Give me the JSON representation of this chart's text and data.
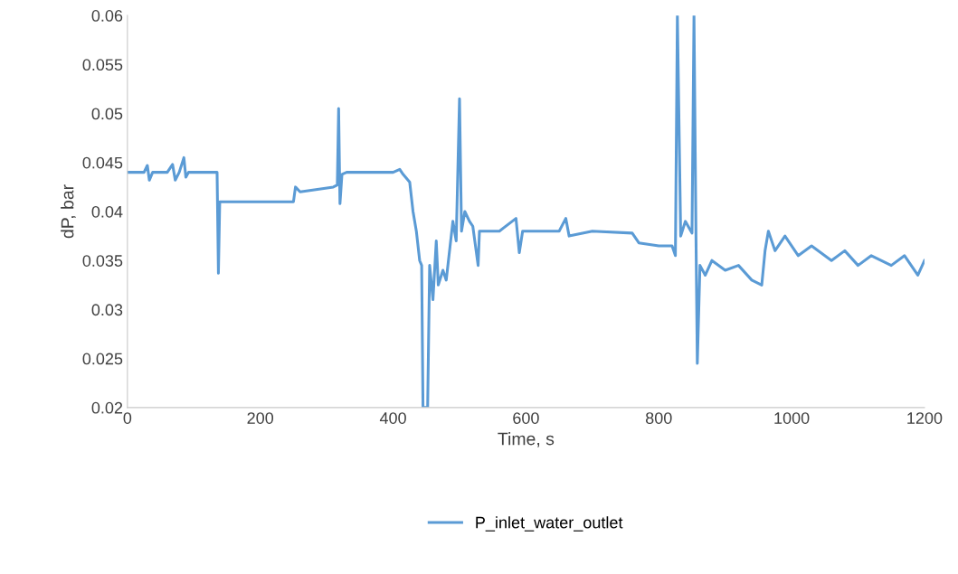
{
  "chart_data": {
    "type": "line",
    "xlabel": "Time, s",
    "ylabel": "dP, bar",
    "xlim": [
      0,
      1200
    ],
    "xticks": [
      0,
      200,
      400,
      600,
      800,
      1000,
      1200
    ],
    "ylim": [
      0.02,
      0.06
    ],
    "yticks": [
      0.02,
      0.025,
      0.03,
      0.035,
      0.04,
      0.045,
      0.05,
      0.055,
      0.06
    ],
    "legend": "bottom",
    "grid": false,
    "marker": "none",
    "line_style": "solid",
    "series": [
      {
        "name": "P_inlet_water_outlet",
        "color": "#5b9bd5",
        "x": [
          0,
          25,
          30,
          33,
          38,
          60,
          68,
          72,
          78,
          85,
          88,
          92,
          135,
          137,
          139,
          145,
          200,
          250,
          253,
          260,
          310,
          316,
          318,
          320,
          323,
          330,
          400,
          410,
          415,
          425,
          430,
          435,
          440,
          443,
          445,
          452,
          455,
          460,
          465,
          468,
          475,
          480,
          490,
          495,
          500,
          503,
          508,
          515,
          520,
          528,
          530,
          560,
          585,
          590,
          595,
          650,
          660,
          665,
          700,
          760,
          770,
          800,
          820,
          825,
          828,
          833,
          840,
          850,
          853,
          856,
          858,
          862,
          870,
          880,
          900,
          920,
          940,
          955,
          960,
          965,
          975,
          990,
          1010,
          1030,
          1060,
          1080,
          1100,
          1120,
          1150,
          1170,
          1190,
          1200
        ],
        "values": [
          0.044,
          0.044,
          0.0447,
          0.0432,
          0.044,
          0.044,
          0.0448,
          0.0432,
          0.044,
          0.0455,
          0.0435,
          0.044,
          0.044,
          0.0337,
          0.041,
          0.041,
          0.041,
          0.041,
          0.0425,
          0.042,
          0.0425,
          0.0427,
          0.0505,
          0.0408,
          0.0438,
          0.044,
          0.044,
          0.0443,
          0.0438,
          0.043,
          0.04,
          0.038,
          0.035,
          0.0345,
          0.02,
          0.02,
          0.0345,
          0.031,
          0.037,
          0.0325,
          0.034,
          0.033,
          0.039,
          0.037,
          0.0515,
          0.038,
          0.04,
          0.039,
          0.0385,
          0.0345,
          0.038,
          0.038,
          0.0393,
          0.0358,
          0.038,
          0.038,
          0.0393,
          0.0375,
          0.038,
          0.0378,
          0.0368,
          0.0365,
          0.0365,
          0.0355,
          0.06,
          0.0375,
          0.039,
          0.0378,
          0.06,
          0.0375,
          0.0245,
          0.0345,
          0.0335,
          0.035,
          0.034,
          0.0345,
          0.033,
          0.0325,
          0.036,
          0.038,
          0.036,
          0.0375,
          0.0355,
          0.0365,
          0.035,
          0.036,
          0.0345,
          0.0355,
          0.0345,
          0.0355,
          0.0335,
          0.035
        ]
      }
    ]
  }
}
